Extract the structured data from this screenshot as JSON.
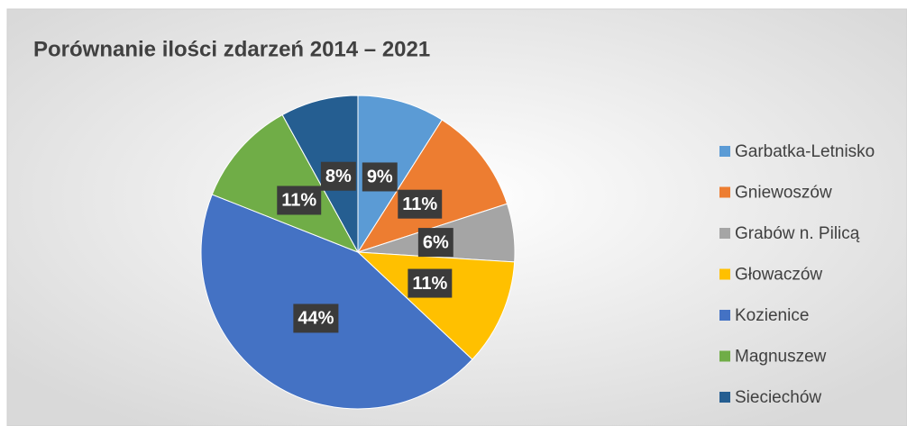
{
  "chart_data": {
    "type": "pie",
    "title": "Porównanie ilości zdarzeń 2014 – 2021",
    "categories": [
      "Garbatka-Letnisko",
      "Gniewoszów",
      "Grabów n. Pilicą",
      "Głowaczów",
      "Kozienice",
      "Magnuszew",
      "Sieciechów"
    ],
    "values": [
      9,
      11,
      6,
      11,
      44,
      11,
      8
    ],
    "value_labels": [
      "9%",
      "11%",
      "6%",
      "11%",
      "44%",
      "11%",
      "8%"
    ],
    "colors": [
      "#5b9bd5",
      "#ed7d31",
      "#a5a5a5",
      "#ffc000",
      "#4472c4",
      "#70ad47",
      "#255e91"
    ],
    "legend": "right"
  }
}
